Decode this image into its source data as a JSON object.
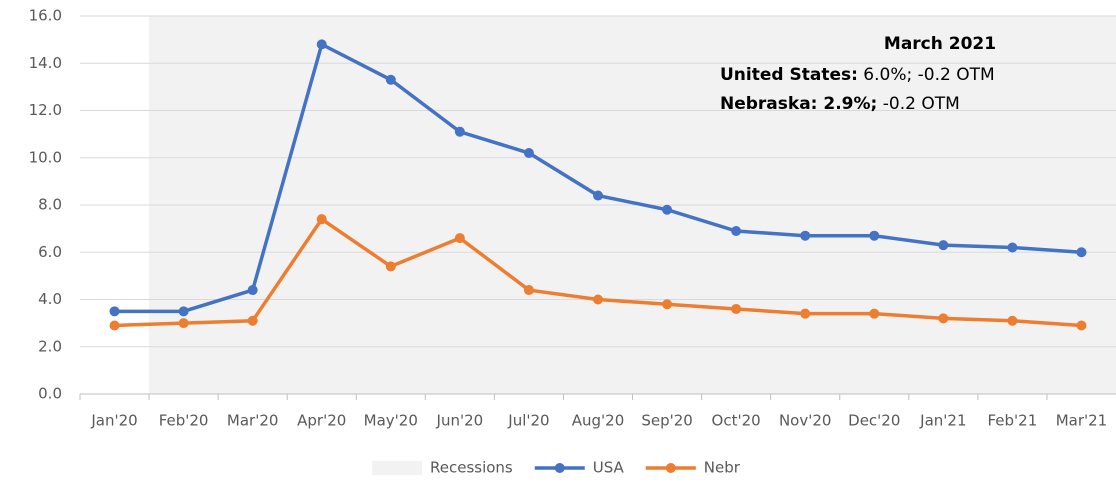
{
  "chart_data": {
    "type": "line",
    "categories": [
      "Jan'20",
      "Feb'20",
      "Mar'20",
      "Apr'20",
      "May'20",
      "Jun'20",
      "Jul'20",
      "Aug'20",
      "Sep'20",
      "Oct'20",
      "Nov'20",
      "Dec'20",
      "Jan'21",
      "Feb'21",
      "Mar'21"
    ],
    "series": [
      {
        "name": "Recessions",
        "type": "bar",
        "color": "#f2f2f2",
        "values": [
          null,
          16,
          16,
          16,
          16,
          16,
          16,
          16,
          16,
          16,
          16,
          16,
          16,
          16,
          16
        ]
      },
      {
        "name": "USA",
        "type": "line",
        "color": "#4472c4",
        "values": [
          3.5,
          3.5,
          4.4,
          14.8,
          13.3,
          11.1,
          10.2,
          8.4,
          7.8,
          6.9,
          6.7,
          6.7,
          6.3,
          6.2,
          6.0
        ]
      },
      {
        "name": "Nebr",
        "type": "line",
        "color": "#ed7d31",
        "values": [
          2.9,
          3.0,
          3.1,
          7.4,
          5.4,
          6.6,
          4.4,
          4.0,
          3.8,
          3.6,
          3.4,
          3.4,
          3.2,
          3.1,
          2.9
        ]
      }
    ],
    "ylim": [
      0,
      16
    ],
    "yticks": [
      {
        "value": 0,
        "label": "0.0"
      },
      {
        "value": 2,
        "label": "2.0"
      },
      {
        "value": 4,
        "label": "4.0"
      },
      {
        "value": 6,
        "label": "6.0"
      },
      {
        "value": 8,
        "label": "8.0"
      },
      {
        "value": 10,
        "label": "10.0"
      },
      {
        "value": 12,
        "label": "12.0"
      },
      {
        "value": 14,
        "label": "14.0"
      },
      {
        "value": 16,
        "label": "16.0"
      }
    ],
    "grid": true,
    "legend": "bottom",
    "annotation": {
      "title": "March 2021",
      "lines": [
        {
          "bold": "United States:",
          "rest": " 6.0%; -0.2 OTM"
        },
        {
          "bold": "Nebraska: 2.9%;",
          "rest": " -0.2 OTM"
        }
      ]
    }
  }
}
